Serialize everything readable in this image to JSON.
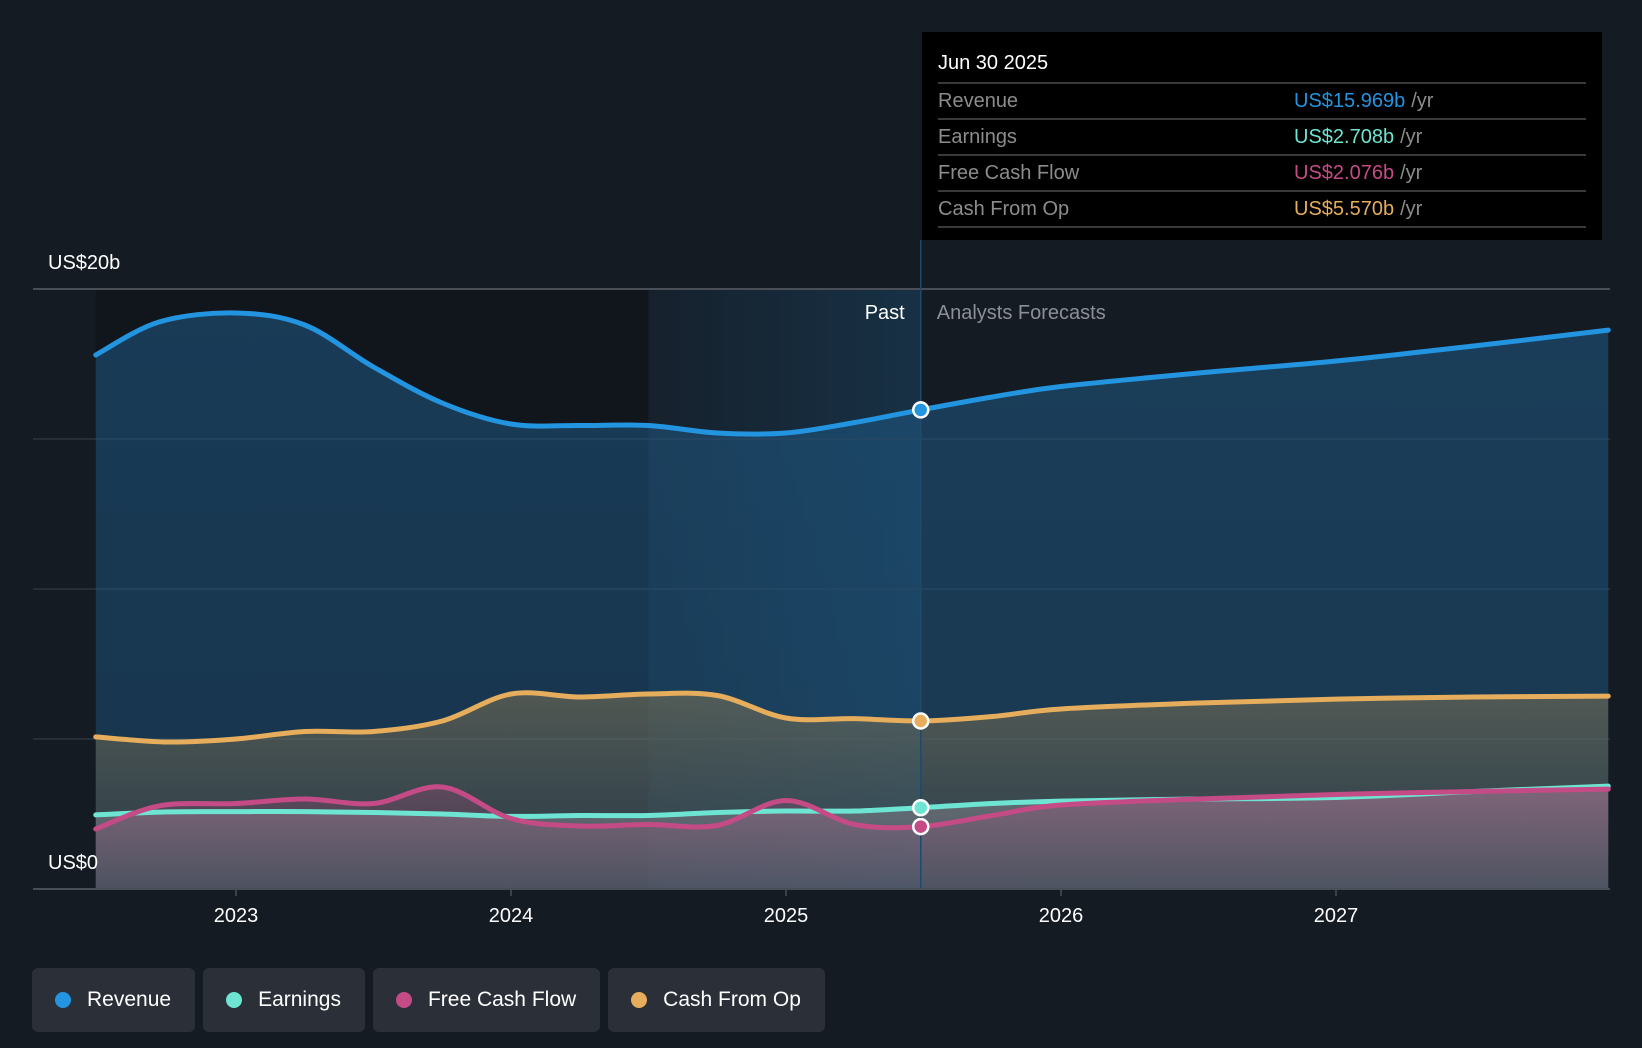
{
  "colors": {
    "background": "#151b23",
    "revenue": "#2394e0",
    "earnings": "#6ee5d2",
    "free_cash_flow": "#c44b86",
    "cash_from_op": "#e6ad5c",
    "gridline": "#3a4049",
    "tooltip_bg": "#000000"
  },
  "tooltip": {
    "date": "Jun 30 2025",
    "rows": [
      {
        "label": "Revenue",
        "value": "US$15.969b",
        "unit": "/yr",
        "color": "#2394e0"
      },
      {
        "label": "Earnings",
        "value": "US$2.708b",
        "unit": "/yr",
        "color": "#6ee5d2"
      },
      {
        "label": "Free Cash Flow",
        "value": "US$2.076b",
        "unit": "/yr",
        "color": "#c44b86"
      },
      {
        "label": "Cash From Op",
        "value": "US$5.570b",
        "unit": "/yr",
        "color": "#e6ad5c"
      }
    ]
  },
  "sections": {
    "past": "Past",
    "forecast": "Analysts Forecasts"
  },
  "legend": [
    {
      "label": "Revenue",
      "color": "#2394e0"
    },
    {
      "label": "Earnings",
      "color": "#6ee5d2"
    },
    {
      "label": "Free Cash Flow",
      "color": "#c44b86"
    },
    {
      "label": "Cash From Op",
      "color": "#e6ad5c"
    }
  ],
  "chart_data": {
    "type": "area",
    "title": "",
    "xlabel": "",
    "ylabel": "",
    "y_unit": "US$ billions",
    "ylim": [
      0,
      20
    ],
    "y_tick_labels": [
      {
        "value": 20,
        "label": "US$20b"
      },
      {
        "value": 0,
        "label": "US$0"
      }
    ],
    "y_gridlines": [
      0,
      5,
      10,
      15,
      20
    ],
    "x_ticks": [
      {
        "value": 2023,
        "label": "2023"
      },
      {
        "value": 2024,
        "label": "2024"
      },
      {
        "value": 2025,
        "label": "2025"
      },
      {
        "value": 2026,
        "label": "2026"
      },
      {
        "value": 2027,
        "label": "2027"
      }
    ],
    "xlim": [
      2022.49,
      2027.99
    ],
    "past_highlight_start": 2024.5,
    "forecast_start": 2025.49,
    "marker_x": 2025.49,
    "grid": true,
    "legend_position": "bottom-left",
    "series": [
      {
        "name": "Revenue",
        "key": "revenue",
        "points": [
          [
            2022.49,
            17.8
          ],
          [
            2022.72,
            18.9
          ],
          [
            2023.0,
            19.2
          ],
          [
            2023.25,
            18.8
          ],
          [
            2023.5,
            17.4
          ],
          [
            2023.75,
            16.2
          ],
          [
            2024.0,
            15.5
          ],
          [
            2024.25,
            15.45
          ],
          [
            2024.5,
            15.45
          ],
          [
            2024.75,
            15.2
          ],
          [
            2025.0,
            15.2
          ],
          [
            2025.25,
            15.55
          ],
          [
            2025.49,
            15.97
          ],
          [
            2025.75,
            16.4
          ],
          [
            2026.0,
            16.75
          ],
          [
            2026.5,
            17.2
          ],
          [
            2027.0,
            17.6
          ],
          [
            2027.5,
            18.1
          ],
          [
            2027.99,
            18.63
          ]
        ]
      },
      {
        "name": "Cash From Op",
        "key": "cash_from_op",
        "points": [
          [
            2022.49,
            5.07
          ],
          [
            2022.75,
            4.9
          ],
          [
            2023.0,
            5.0
          ],
          [
            2023.25,
            5.25
          ],
          [
            2023.5,
            5.25
          ],
          [
            2023.75,
            5.6
          ],
          [
            2024.0,
            6.5
          ],
          [
            2024.25,
            6.4
          ],
          [
            2024.5,
            6.5
          ],
          [
            2024.75,
            6.45
          ],
          [
            2025.0,
            5.7
          ],
          [
            2025.25,
            5.68
          ],
          [
            2025.49,
            5.6
          ],
          [
            2025.75,
            5.75
          ],
          [
            2026.0,
            6.0
          ],
          [
            2026.5,
            6.2
          ],
          [
            2027.0,
            6.33
          ],
          [
            2027.5,
            6.4
          ],
          [
            2027.99,
            6.43
          ]
        ]
      },
      {
        "name": "Earnings",
        "key": "earnings",
        "points": [
          [
            2022.49,
            2.47
          ],
          [
            2022.75,
            2.57
          ],
          [
            2023.0,
            2.58
          ],
          [
            2023.25,
            2.58
          ],
          [
            2023.5,
            2.55
          ],
          [
            2023.75,
            2.5
          ],
          [
            2024.0,
            2.42
          ],
          [
            2024.25,
            2.45
          ],
          [
            2024.5,
            2.45
          ],
          [
            2024.75,
            2.55
          ],
          [
            2025.0,
            2.6
          ],
          [
            2025.25,
            2.6
          ],
          [
            2025.49,
            2.71
          ],
          [
            2025.75,
            2.85
          ],
          [
            2026.0,
            2.93
          ],
          [
            2026.5,
            3.0
          ],
          [
            2027.0,
            3.05
          ],
          [
            2027.5,
            3.25
          ],
          [
            2027.99,
            3.43
          ]
        ]
      },
      {
        "name": "Free Cash Flow",
        "key": "free_cash_flow",
        "points": [
          [
            2022.49,
            2.0
          ],
          [
            2022.72,
            2.77
          ],
          [
            2023.0,
            2.85
          ],
          [
            2023.25,
            3.0
          ],
          [
            2023.5,
            2.85
          ],
          [
            2023.75,
            3.4
          ],
          [
            2024.0,
            2.35
          ],
          [
            2024.25,
            2.1
          ],
          [
            2024.5,
            2.15
          ],
          [
            2024.75,
            2.12
          ],
          [
            2025.0,
            2.95
          ],
          [
            2025.25,
            2.15
          ],
          [
            2025.49,
            2.08
          ],
          [
            2025.75,
            2.45
          ],
          [
            2026.0,
            2.8
          ],
          [
            2026.5,
            3.0
          ],
          [
            2027.0,
            3.15
          ],
          [
            2027.5,
            3.25
          ],
          [
            2027.99,
            3.33
          ]
        ]
      }
    ]
  }
}
